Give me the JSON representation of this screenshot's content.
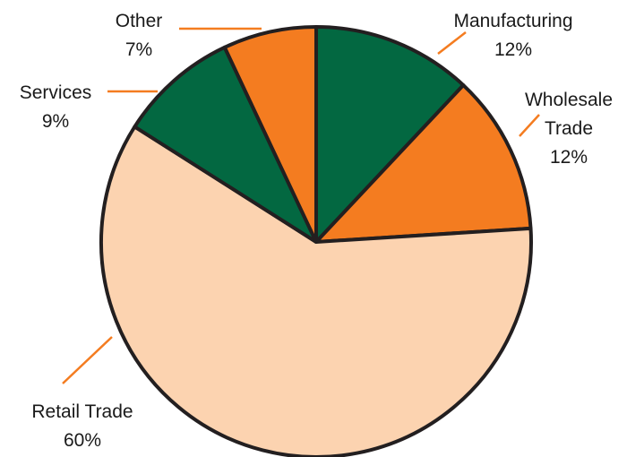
{
  "chart_data": {
    "type": "pie",
    "title": "",
    "slices": [
      {
        "label_lines": [
          "Manufacturing"
        ],
        "value": 12,
        "value_label": "12%",
        "color": "#036841"
      },
      {
        "label_lines": [
          "Wholesale",
          "Trade"
        ],
        "value": 12,
        "value_label": "12%",
        "color": "#f47c20"
      },
      {
        "label_lines": [
          "Retail Trade"
        ],
        "value": 60,
        "value_label": "60%",
        "color": "#fcd3b0"
      },
      {
        "label_lines": [
          "Services"
        ],
        "value": 9,
        "value_label": "9%",
        "color": "#036841"
      },
      {
        "label_lines": [
          "Other"
        ],
        "value": 7,
        "value_label": "7%",
        "color": "#f47c20"
      }
    ],
    "start_angle_deg": 0,
    "direction": "clockwise",
    "leader_line_color": "#f47c20",
    "slice_border_color": "#231f20"
  }
}
